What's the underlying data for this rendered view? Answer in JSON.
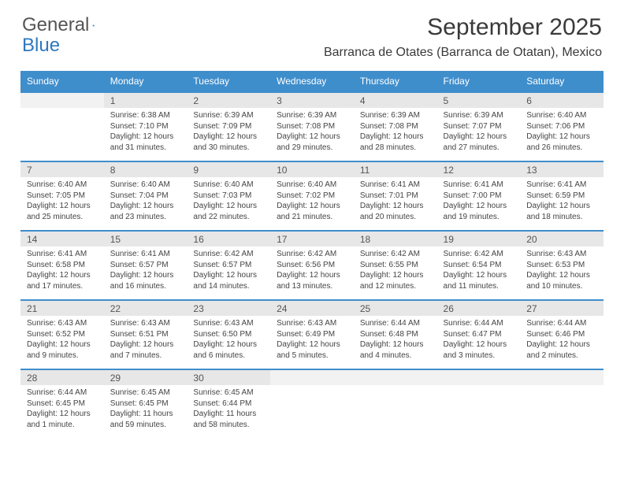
{
  "logo": {
    "text1": "General",
    "text2": "Blue"
  },
  "title": "September 2025",
  "location": "Barranca de Otates (Barranca de Otatan), Mexico",
  "colors": {
    "header_bg": "#3f8ecc",
    "header_text": "#ffffff",
    "daynum_bg": "#e7e7e7",
    "daynum_empty_bg": "#f2f2f2",
    "border_top": "#3f8ecc",
    "body_text": "#444444",
    "page_bg": "#ffffff",
    "logo_gray": "#555555",
    "logo_blue": "#2f78bf"
  },
  "weekdays": [
    "Sunday",
    "Monday",
    "Tuesday",
    "Wednesday",
    "Thursday",
    "Friday",
    "Saturday"
  ],
  "weeks": [
    [
      null,
      {
        "n": "1",
        "sr": "6:38 AM",
        "ss": "7:10 PM",
        "dl": "12 hours and 31 minutes."
      },
      {
        "n": "2",
        "sr": "6:39 AM",
        "ss": "7:09 PM",
        "dl": "12 hours and 30 minutes."
      },
      {
        "n": "3",
        "sr": "6:39 AM",
        "ss": "7:08 PM",
        "dl": "12 hours and 29 minutes."
      },
      {
        "n": "4",
        "sr": "6:39 AM",
        "ss": "7:08 PM",
        "dl": "12 hours and 28 minutes."
      },
      {
        "n": "5",
        "sr": "6:39 AM",
        "ss": "7:07 PM",
        "dl": "12 hours and 27 minutes."
      },
      {
        "n": "6",
        "sr": "6:40 AM",
        "ss": "7:06 PM",
        "dl": "12 hours and 26 minutes."
      }
    ],
    [
      {
        "n": "7",
        "sr": "6:40 AM",
        "ss": "7:05 PM",
        "dl": "12 hours and 25 minutes."
      },
      {
        "n": "8",
        "sr": "6:40 AM",
        "ss": "7:04 PM",
        "dl": "12 hours and 23 minutes."
      },
      {
        "n": "9",
        "sr": "6:40 AM",
        "ss": "7:03 PM",
        "dl": "12 hours and 22 minutes."
      },
      {
        "n": "10",
        "sr": "6:40 AM",
        "ss": "7:02 PM",
        "dl": "12 hours and 21 minutes."
      },
      {
        "n": "11",
        "sr": "6:41 AM",
        "ss": "7:01 PM",
        "dl": "12 hours and 20 minutes."
      },
      {
        "n": "12",
        "sr": "6:41 AM",
        "ss": "7:00 PM",
        "dl": "12 hours and 19 minutes."
      },
      {
        "n": "13",
        "sr": "6:41 AM",
        "ss": "6:59 PM",
        "dl": "12 hours and 18 minutes."
      }
    ],
    [
      {
        "n": "14",
        "sr": "6:41 AM",
        "ss": "6:58 PM",
        "dl": "12 hours and 17 minutes."
      },
      {
        "n": "15",
        "sr": "6:41 AM",
        "ss": "6:57 PM",
        "dl": "12 hours and 16 minutes."
      },
      {
        "n": "16",
        "sr": "6:42 AM",
        "ss": "6:57 PM",
        "dl": "12 hours and 14 minutes."
      },
      {
        "n": "17",
        "sr": "6:42 AM",
        "ss": "6:56 PM",
        "dl": "12 hours and 13 minutes."
      },
      {
        "n": "18",
        "sr": "6:42 AM",
        "ss": "6:55 PM",
        "dl": "12 hours and 12 minutes."
      },
      {
        "n": "19",
        "sr": "6:42 AM",
        "ss": "6:54 PM",
        "dl": "12 hours and 11 minutes."
      },
      {
        "n": "20",
        "sr": "6:43 AM",
        "ss": "6:53 PM",
        "dl": "12 hours and 10 minutes."
      }
    ],
    [
      {
        "n": "21",
        "sr": "6:43 AM",
        "ss": "6:52 PM",
        "dl": "12 hours and 9 minutes."
      },
      {
        "n": "22",
        "sr": "6:43 AM",
        "ss": "6:51 PM",
        "dl": "12 hours and 7 minutes."
      },
      {
        "n": "23",
        "sr": "6:43 AM",
        "ss": "6:50 PM",
        "dl": "12 hours and 6 minutes."
      },
      {
        "n": "24",
        "sr": "6:43 AM",
        "ss": "6:49 PM",
        "dl": "12 hours and 5 minutes."
      },
      {
        "n": "25",
        "sr": "6:44 AM",
        "ss": "6:48 PM",
        "dl": "12 hours and 4 minutes."
      },
      {
        "n": "26",
        "sr": "6:44 AM",
        "ss": "6:47 PM",
        "dl": "12 hours and 3 minutes."
      },
      {
        "n": "27",
        "sr": "6:44 AM",
        "ss": "6:46 PM",
        "dl": "12 hours and 2 minutes."
      }
    ],
    [
      {
        "n": "28",
        "sr": "6:44 AM",
        "ss": "6:45 PM",
        "dl": "12 hours and 1 minute."
      },
      {
        "n": "29",
        "sr": "6:45 AM",
        "ss": "6:45 PM",
        "dl": "11 hours and 59 minutes."
      },
      {
        "n": "30",
        "sr": "6:45 AM",
        "ss": "6:44 PM",
        "dl": "11 hours and 58 minutes."
      },
      null,
      null,
      null,
      null
    ]
  ],
  "labels": {
    "sunrise": "Sunrise:",
    "sunset": "Sunset:",
    "daylight": "Daylight:"
  }
}
